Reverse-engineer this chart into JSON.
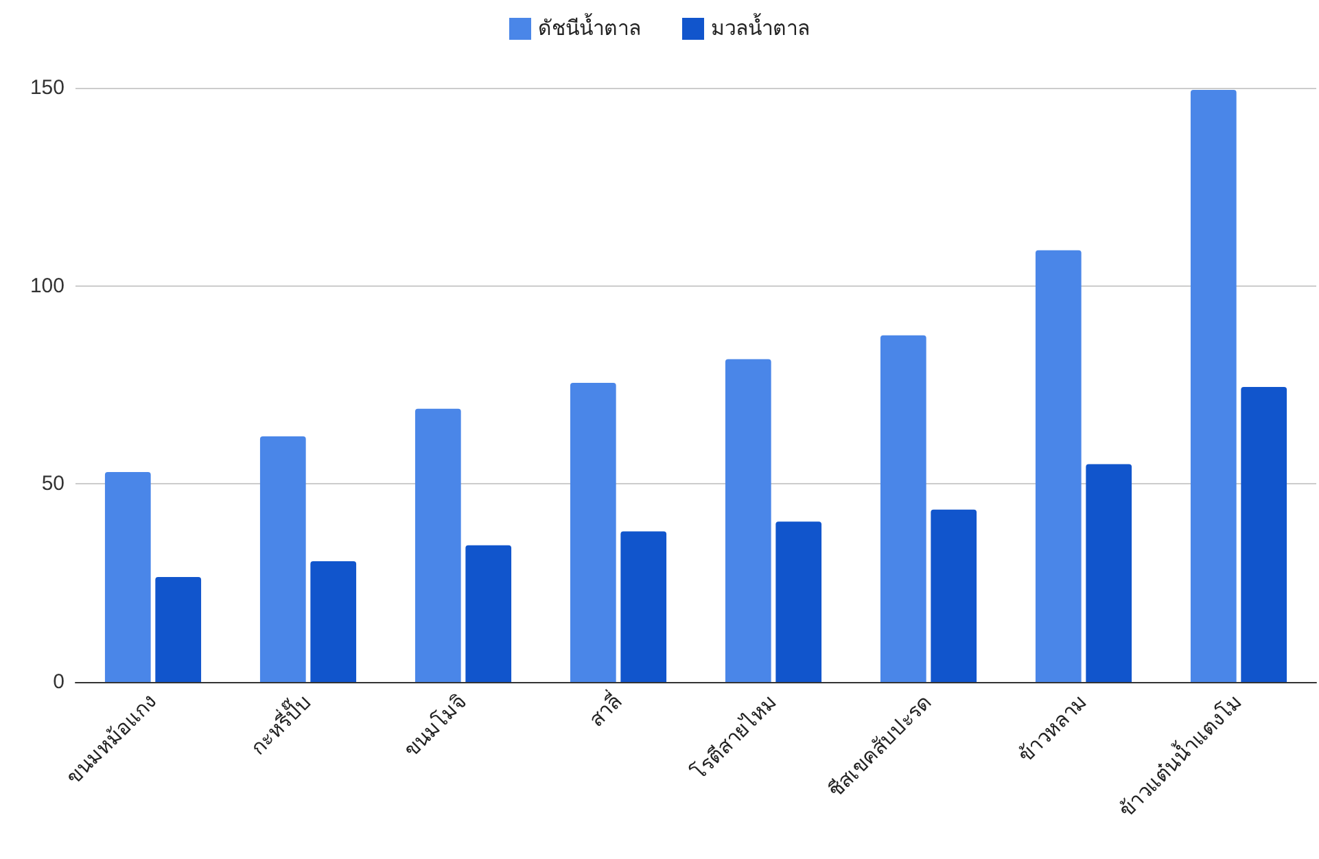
{
  "chart_data": {
    "type": "bar",
    "categories": [
      "ขนมหม้อแกง",
      "กะหรี่ปั๊บ",
      "ขนมโมจิ",
      "สาลี่",
      "โรตีสายไหม",
      "ชีสเขคสับปะรด",
      "ข้าวหลาม",
      "ข้าวแต๋นน้ำแตงโม"
    ],
    "series": [
      {
        "name": "ดัชนีน้ำตาล",
        "color": "#4a86e8",
        "values": [
          53,
          62,
          69,
          75.5,
          81.5,
          87.5,
          109,
          149.5
        ]
      },
      {
        "name": "มวลน้ำตาล",
        "color": "#1155cc",
        "values": [
          26.5,
          30.5,
          34.5,
          38,
          40.5,
          43.5,
          55,
          74.5
        ]
      }
    ],
    "ylim": [
      0,
      150
    ],
    "yticks": [
      0,
      50,
      100,
      150
    ],
    "grid": "y",
    "legend": "top"
  }
}
